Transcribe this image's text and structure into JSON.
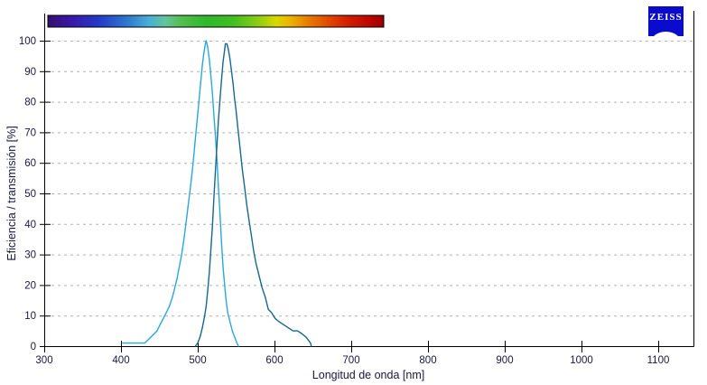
{
  "logo": {
    "text": "ZEISS",
    "bg_color": "#0B0BCE",
    "text_color": "#FFFFFF"
  },
  "chart_data": {
    "type": "line",
    "title": "",
    "xlabel": "Longitud de onda [nm]",
    "ylabel": "Eficiencia / transmisión [%]",
    "xlim": [
      300,
      1150
    ],
    "ylim": [
      0,
      100
    ],
    "x_ticks": [
      300,
      400,
      500,
      600,
      700,
      800,
      900,
      1000,
      1100
    ],
    "y_ticks": [
      0,
      10,
      20,
      30,
      40,
      50,
      60,
      70,
      80,
      90,
      100
    ],
    "grid": "horizontal-dashed",
    "grid_color": "#b2b2b2",
    "axis_color": "#000000",
    "label_color": "#18183E",
    "legend_position": "none",
    "series": [
      {
        "name": "cyan-curve",
        "peak_nm": 511,
        "peak_value": 100,
        "color": "#29A8DF",
        "points": [
          [
            402,
            1
          ],
          [
            408,
            1
          ],
          [
            414,
            1
          ],
          [
            420,
            1
          ],
          [
            426,
            1
          ],
          [
            431,
            1
          ],
          [
            435,
            2
          ],
          [
            439,
            3
          ],
          [
            443,
            4
          ],
          [
            447,
            5
          ],
          [
            451,
            7
          ],
          [
            455,
            9
          ],
          [
            459,
            11
          ],
          [
            463,
            13
          ],
          [
            467,
            16
          ],
          [
            470,
            19
          ],
          [
            473,
            22
          ],
          [
            476,
            26
          ],
          [
            479,
            30
          ],
          [
            482,
            35
          ],
          [
            485,
            41
          ],
          [
            488,
            47
          ],
          [
            491,
            53
          ],
          [
            494,
            60
          ],
          [
            497,
            68
          ],
          [
            500,
            76
          ],
          [
            503,
            84
          ],
          [
            506,
            92
          ],
          [
            508,
            96
          ],
          [
            510,
            99
          ],
          [
            511,
            100
          ],
          [
            513,
            98
          ],
          [
            515,
            94
          ],
          [
            517,
            89
          ],
          [
            519,
            83
          ],
          [
            521,
            76
          ],
          [
            523,
            69
          ],
          [
            525,
            61
          ],
          [
            527,
            52
          ],
          [
            529,
            43
          ],
          [
            531,
            34
          ],
          [
            533,
            26
          ],
          [
            535,
            20
          ],
          [
            537,
            15
          ],
          [
            539,
            11
          ],
          [
            542,
            8
          ],
          [
            545,
            5
          ],
          [
            548,
            3
          ],
          [
            551,
            1
          ],
          [
            553,
            0
          ]
        ]
      },
      {
        "name": "dark-blue-curve",
        "peak_nm": 536,
        "peak_value": 99,
        "color": "#15688F",
        "points": [
          [
            497,
            0
          ],
          [
            500,
            1
          ],
          [
            503,
            3
          ],
          [
            506,
            6
          ],
          [
            509,
            10
          ],
          [
            511,
            13
          ],
          [
            513,
            18
          ],
          [
            515,
            24
          ],
          [
            517,
            31
          ],
          [
            519,
            39
          ],
          [
            521,
            48
          ],
          [
            523,
            57
          ],
          [
            525,
            66
          ],
          [
            527,
            74
          ],
          [
            529,
            81
          ],
          [
            531,
            87
          ],
          [
            533,
            93
          ],
          [
            535,
            97
          ],
          [
            536,
            99
          ],
          [
            538,
            99
          ],
          [
            540,
            97
          ],
          [
            542,
            94
          ],
          [
            544,
            90
          ],
          [
            546,
            86
          ],
          [
            548,
            81
          ],
          [
            550,
            77
          ],
          [
            552,
            72
          ],
          [
            555,
            65
          ],
          [
            558,
            58
          ],
          [
            561,
            52
          ],
          [
            564,
            46
          ],
          [
            567,
            41
          ],
          [
            570,
            36
          ],
          [
            573,
            31
          ],
          [
            576,
            27
          ],
          [
            580,
            23
          ],
          [
            584,
            19
          ],
          [
            588,
            16
          ],
          [
            592,
            12
          ],
          [
            596,
            11
          ],
          [
            601,
            9
          ],
          [
            606,
            8
          ],
          [
            612,
            7
          ],
          [
            618,
            6
          ],
          [
            624,
            5
          ],
          [
            630,
            5
          ],
          [
            636,
            4
          ],
          [
            641,
            3
          ],
          [
            644,
            2
          ],
          [
            647,
            1
          ],
          [
            648,
            0
          ]
        ]
      }
    ],
    "spectrum_bar": {
      "wavelength_range": [
        303,
        744
      ],
      "stops": [
        {
          "offset": 0.0,
          "color": "#360E6E"
        },
        {
          "offset": 0.07,
          "color": "#3A18A8"
        },
        {
          "offset": 0.15,
          "color": "#2438C8"
        },
        {
          "offset": 0.24,
          "color": "#2E7CCE"
        },
        {
          "offset": 0.3,
          "color": "#49AED6"
        },
        {
          "offset": 0.35,
          "color": "#63C49C"
        },
        {
          "offset": 0.4,
          "color": "#53BE4A"
        },
        {
          "offset": 0.47,
          "color": "#2EB82E"
        },
        {
          "offset": 0.55,
          "color": "#3FBE20"
        },
        {
          "offset": 0.62,
          "color": "#86CC14"
        },
        {
          "offset": 0.68,
          "color": "#D8D800"
        },
        {
          "offset": 0.72,
          "color": "#ECB400"
        },
        {
          "offset": 0.78,
          "color": "#E87800"
        },
        {
          "offset": 0.84,
          "color": "#E04400"
        },
        {
          "offset": 0.9,
          "color": "#D21A00"
        },
        {
          "offset": 0.96,
          "color": "#BC0600"
        },
        {
          "offset": 1.0,
          "color": "#980000"
        }
      ]
    }
  }
}
